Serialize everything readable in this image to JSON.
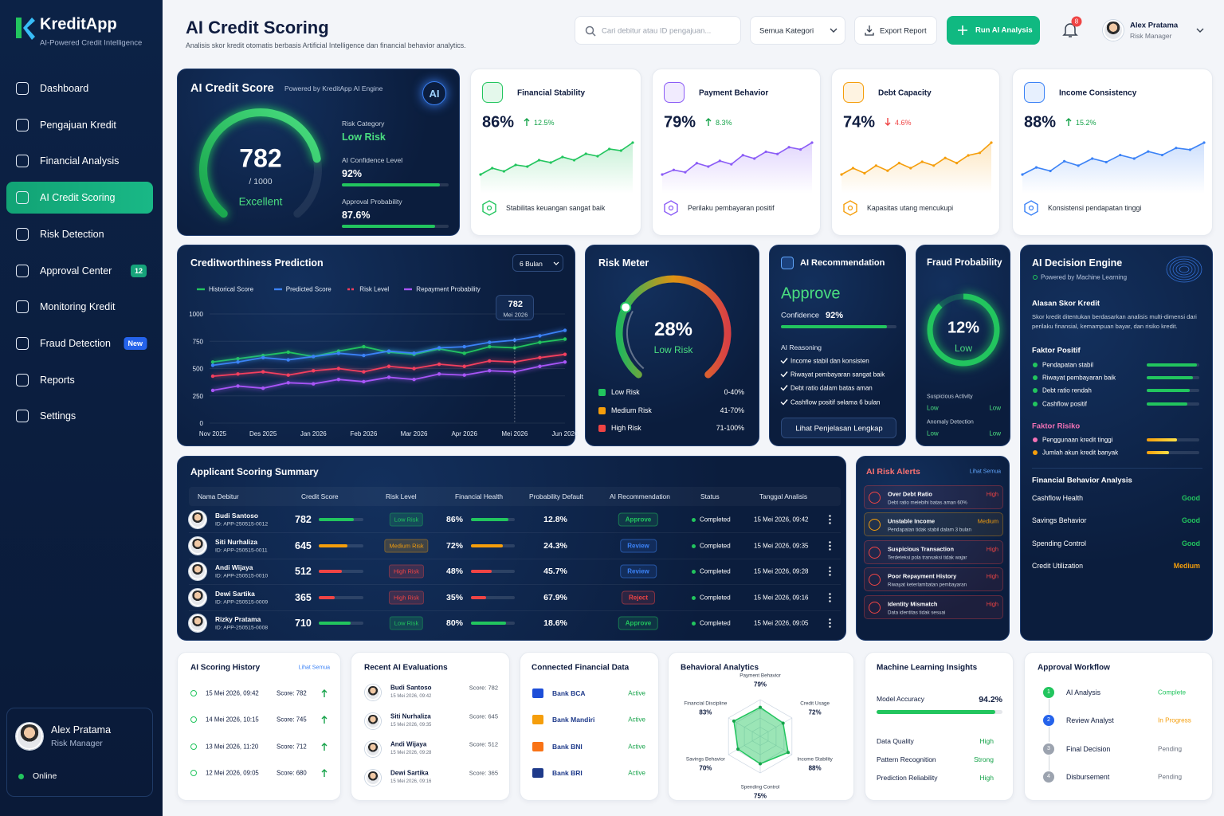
{
  "sidebar": {
    "brand": "KreditApp",
    "tagline": "AI-Powered Credit Intelligence",
    "nav": [
      {
        "label": "Dashboard"
      },
      {
        "label": "Pengajuan Kredit"
      },
      {
        "label": "Financial Analysis"
      },
      {
        "label": "AI Credit Scoring",
        "active": true
      },
      {
        "label": "Risk Detection"
      },
      {
        "label": "Approval Center",
        "badge": 12
      },
      {
        "label": "Monitoring Kredit"
      },
      {
        "label": "Fraud Detection",
        "badge": "New"
      },
      {
        "label": "Reports"
      },
      {
        "label": "Settings"
      }
    ],
    "user": {
      "name": "Alex Pratama",
      "role": "Risk Manager",
      "status": "Online"
    }
  },
  "header": {
    "title": "AI Credit Scoring",
    "subtitle": "Analisis skor kredit otomatis berbasis Artificial Intelligence dan financial behavior analytics.",
    "search_placeholder": "Cari debitur atau ID pengajuan...",
    "filter": "Semua Kategori",
    "export": "Export Report",
    "run": "Run AI Analysis",
    "notifications": 8,
    "user": {
      "name": "Alex Pratama",
      "role": "Risk Manager"
    }
  },
  "score_card": {
    "title": "AI Credit Score",
    "powered": "Powered by KreditApp AI Engine",
    "badge": "AI",
    "score": 782,
    "max": {
      "value": 1000,
      "label": "/ 1000"
    },
    "grade": "Excellent",
    "risk_category": {
      "label": "Risk Category",
      "value": "Low Risk"
    },
    "bars": [
      {
        "label": "AI Confidence Level",
        "value": 92,
        "value_label": "92%"
      },
      {
        "label": "Approval Probability",
        "value": 87.6,
        "value_label": "87.6%"
      }
    ]
  },
  "metrics": [
    {
      "title": "Financial Stability",
      "value": "86%",
      "change": "12.5%",
      "trend": "up",
      "color": "#22c55e",
      "note": "Stabilitas keuangan sangat baik",
      "spark": [
        40,
        48,
        44,
        52,
        50,
        58,
        55,
        62,
        58,
        66,
        63,
        72,
        70,
        80
      ]
    },
    {
      "title": "Payment Behavior",
      "value": "79%",
      "change": "8.3%",
      "trend": "up",
      "color": "#8b5cf6",
      "note": "Perilaku pembayaran positif",
      "spark": [
        38,
        42,
        40,
        48,
        45,
        50,
        47,
        55,
        52,
        58,
        56,
        62,
        60,
        66
      ]
    },
    {
      "title": "Debt Capacity",
      "value": "74%",
      "change": "4.6%",
      "trend": "down",
      "color": "#f59e0b",
      "note": "Kapasitas utang mencukupi",
      "spark": [
        45,
        50,
        46,
        52,
        48,
        54,
        50,
        55,
        52,
        58,
        54,
        60,
        62,
        70
      ]
    },
    {
      "title": "Income Consistency",
      "value": "88%",
      "change": "15.2%",
      "trend": "up",
      "color": "#3b82f6",
      "note": "Konsistensi pendapatan tinggi",
      "spark": [
        40,
        48,
        44,
        55,
        50,
        58,
        54,
        62,
        58,
        66,
        62,
        70,
        68,
        76
      ]
    }
  ],
  "chart_data": [
    {
      "type": "line",
      "title": "Creditworthiness Prediction",
      "range": "6 Bulan",
      "categories": [
        "Nov 2025",
        null,
        "Des 2025",
        null,
        "Jan 2026",
        null,
        "Feb 2026",
        null,
        "Mar 2026",
        null,
        "Apr 2026",
        null,
        "Mei 2026",
        null,
        "Jun 2026"
      ],
      "series": [
        {
          "name": "Historical Score",
          "color": "#22c55e",
          "values": [
            560,
            590,
            620,
            650,
            610,
            660,
            700,
            650,
            630,
            680,
            640,
            700,
            690,
            740,
            770
          ]
        },
        {
          "name": "Predicted Score",
          "color": "#3b82f6",
          "values": [
            530,
            560,
            600,
            580,
            610,
            640,
            620,
            660,
            640,
            690,
            700,
            740,
            760,
            800,
            850
          ]
        },
        {
          "name": "Risk Level",
          "color": "#f43f5e",
          "dash": true,
          "values": [
            430,
            450,
            470,
            440,
            480,
            500,
            470,
            520,
            500,
            540,
            520,
            570,
            560,
            600,
            630
          ]
        },
        {
          "name": "Repayment Probability",
          "color": "#a855f7",
          "values": [
            300,
            340,
            320,
            370,
            360,
            400,
            380,
            420,
            400,
            450,
            440,
            480,
            470,
            520,
            560
          ]
        }
      ],
      "ylim": [
        0,
        1000
      ],
      "yticks": [
        0,
        250,
        500,
        750,
        1000
      ],
      "grid": true,
      "tooltip": {
        "value": 782,
        "date": "Mei 2026"
      }
    },
    {
      "type": "radar",
      "title": "Behavioral Analytics",
      "color": "#22c55e",
      "categories": [
        "Payment Behavior",
        "Credit Usage",
        "Income Stability",
        "Spending Control",
        "Savings Behavior",
        "Financial Discipline"
      ],
      "values": [
        79,
        72,
        88,
        75,
        70,
        83
      ],
      "value_labels": [
        "79%",
        "72%",
        "88%",
        "75%",
        "70%",
        "83%"
      ]
    }
  ],
  "risk_meter": {
    "title": "Risk Meter",
    "value": 28,
    "value_label": "28%",
    "status": "Low Risk",
    "levels": [
      {
        "label": "Low Risk",
        "range": "0-40%",
        "color": "#22c55e"
      },
      {
        "label": "Medium Risk",
        "range": "41-70%",
        "color": "#f59e0b"
      },
      {
        "label": "High Risk",
        "range": "71-100%",
        "color": "#ef4444"
      }
    ]
  },
  "recommendation": {
    "title": "AI Recommendation",
    "decision": "Approve",
    "confidence_label": "Confidence",
    "confidence": 92,
    "confidence_value_label": "92%",
    "reasoning_title": "AI Reasoning",
    "reasons": [
      "Income stabil dan konsisten",
      "Riwayat pembayaran sangat baik",
      "Debt ratio dalam batas aman",
      "Cashflow positif selama 6 bulan"
    ],
    "button": "Lihat Penjelasan Lengkap"
  },
  "fraud": {
    "title": "Fraud Probability",
    "value": 12,
    "value_label": "12%",
    "status": "Low",
    "checks": [
      {
        "label": "Suspicious Activity",
        "values": [
          "Low",
          "Low"
        ]
      },
      {
        "label": "Anomaly Detection",
        "values": [
          "Low",
          "Low"
        ]
      }
    ]
  },
  "decision_engine": {
    "title": "AI Decision Engine",
    "powered": "Powered by Machine Learning",
    "reason_title": "Alasan Skor Kredit",
    "reason": "Skor kredit ditentukan berdasarkan analisis multi-dimensi dari perilaku finansial, kemampuan bayar, dan risiko kredit.",
    "positive_title": "Faktor Positif",
    "positive": [
      {
        "label": "Pendapatan stabil",
        "value": 95
      },
      {
        "label": "Riwayat pembayaran baik",
        "value": 88
      },
      {
        "label": "Debt ratio rendah",
        "value": 82
      },
      {
        "label": "Cashflow positif",
        "value": 78
      }
    ],
    "risk_title": "Faktor Risiko",
    "risks": [
      {
        "label": "Penggunaan kredit tinggi",
        "value": 58
      },
      {
        "label": "Jumlah akun kredit banyak",
        "value": 42
      }
    ],
    "behavior_title": "Financial Behavior Analysis",
    "behavior": [
      {
        "label": "Cashflow Health",
        "status": "Good",
        "color": "#22c55e"
      },
      {
        "label": "Savings Behavior",
        "status": "Good",
        "color": "#22c55e"
      },
      {
        "label": "Spending Control",
        "status": "Good",
        "color": "#22c55e"
      },
      {
        "label": "Credit Utilization",
        "status": "Medium",
        "color": "#f59e0b"
      }
    ]
  },
  "applicants": {
    "title": "Applicant Scoring Summary",
    "columns": [
      "Nama Debitur",
      "Credit Score",
      "Risk Level",
      "Financial Health",
      "Probability Default",
      "AI Recommendation",
      "Status",
      "Tanggal Analisis"
    ],
    "rows": [
      {
        "name": "Budi Santoso",
        "id": "ID: APP-250515-0012",
        "score": 782,
        "risk": "Low Risk",
        "risk_color": "#22c55e",
        "health": 86,
        "health_label": "86%",
        "pd": "12.8%",
        "rec": "Approve",
        "rec_color": "#22c55e",
        "status": "Completed",
        "date": "15 Mei 2026, 09:42"
      },
      {
        "name": "Siti Nurhaliza",
        "id": "ID: APP-250515-0011",
        "score": 645,
        "risk": "Medium Risk",
        "risk_color": "#f59e0b",
        "health": 72,
        "health_label": "72%",
        "pd": "24.3%",
        "rec": "Review",
        "rec_color": "#3b82f6",
        "status": "Completed",
        "date": "15 Mei 2026, 09:35"
      },
      {
        "name": "Andi Wijaya",
        "id": "ID: APP-250515-0010",
        "score": 512,
        "risk": "High Risk",
        "risk_color": "#ef4444",
        "health": 48,
        "health_label": "48%",
        "pd": "45.7%",
        "rec": "Review",
        "rec_color": "#3b82f6",
        "status": "Completed",
        "date": "15 Mei 2026, 09:28"
      },
      {
        "name": "Dewi Sartika",
        "id": "ID: APP-250515-0009",
        "score": 365,
        "risk": "High Risk",
        "risk_color": "#ef4444",
        "health": 35,
        "health_label": "35%",
        "pd": "67.9%",
        "rec": "Reject",
        "rec_color": "#ef4444",
        "status": "Completed",
        "date": "15 Mei 2026, 09:16"
      },
      {
        "name": "Rizky Pratama",
        "id": "ID: APP-250515-0008",
        "score": 710,
        "risk": "Low Risk",
        "risk_color": "#22c55e",
        "health": 80,
        "health_label": "80%",
        "pd": "18.6%",
        "rec": "Approve",
        "rec_color": "#22c55e",
        "status": "Completed",
        "date": "15 Mei 2026, 09:05"
      }
    ]
  },
  "alerts": {
    "title": "AI Risk Alerts",
    "link": "Lihat Semua",
    "items": [
      {
        "title": "Over Debt Ratio",
        "desc": "Debt ratio melebihi batas aman 60%",
        "level": "High",
        "color": "#ef4444"
      },
      {
        "title": "Unstable Income",
        "desc": "Pendapatan tidak stabil dalam 3 bulan",
        "level": "Medium",
        "color": "#f59e0b"
      },
      {
        "title": "Suspicious Transaction",
        "desc": "Terdeteksi pola transaksi tidak wajar",
        "level": "High",
        "color": "#ef4444"
      },
      {
        "title": "Poor Repayment History",
        "desc": "Riwayat keterlambatan pembayaran",
        "level": "High",
        "color": "#ef4444"
      },
      {
        "title": "Identity Mismatch",
        "desc": "Data identitas tidak sesuai",
        "level": "High",
        "color": "#ef4444"
      }
    ]
  },
  "history": {
    "title": "AI Scoring History",
    "link": "Lihat Semua",
    "items": [
      {
        "date": "15 Mei 2026, 09:42",
        "score": "Score: 782"
      },
      {
        "date": "14 Mei 2026, 10:15",
        "score": "Score: 745"
      },
      {
        "date": "13 Mei 2026, 11:20",
        "score": "Score: 712"
      },
      {
        "date": "12 Mei 2026, 09:05",
        "score": "Score: 680"
      }
    ]
  },
  "evaluations": {
    "title": "Recent AI Evaluations",
    "items": [
      {
        "name": "Budi Santoso",
        "date": "15 Mei 2026, 09:42",
        "score": "Score: 782"
      },
      {
        "name": "Siti Nurhaliza",
        "date": "15 Mei 2026, 09:35",
        "score": "Score: 645"
      },
      {
        "name": "Andi Wijaya",
        "date": "15 Mei 2026, 09:28",
        "score": "Score: 512"
      },
      {
        "name": "Dewi Sartika",
        "date": "15 Mei 2026, 09:16",
        "score": "Score: 365"
      }
    ]
  },
  "connected": {
    "title": "Connected Financial Data",
    "items": [
      {
        "name": "Bank BCA",
        "status": "Active",
        "color": "#1d4ed8"
      },
      {
        "name": "Bank Mandiri",
        "status": "Active",
        "color": "#f59e0b"
      },
      {
        "name": "Bank BNI",
        "status": "Active",
        "color": "#f97316"
      },
      {
        "name": "Bank BRI",
        "status": "Active",
        "color": "#1e3a8a"
      }
    ]
  },
  "ml": {
    "title": "Machine Learning Insights",
    "accuracy_label": "Model Accuracy",
    "accuracy": 94.2,
    "accuracy_value_label": "94.2%",
    "items": [
      {
        "label": "Data Quality",
        "value": "High"
      },
      {
        "label": "Pattern Recognition",
        "value": "Strong"
      },
      {
        "label": "Prediction Reliability",
        "value": "High"
      }
    ]
  },
  "workflow": {
    "title": "Approval Workflow",
    "steps": [
      {
        "number": 1,
        "label": "AI Analysis",
        "status": "Complete",
        "color": "#22c55e"
      },
      {
        "number": 2,
        "label": "Review Analyst",
        "status": "In Progress",
        "color": "#f59e0b",
        "dot": "#2563eb"
      },
      {
        "number": 3,
        "label": "Final Decision",
        "status": "Pending",
        "color": "#6b7280"
      },
      {
        "number": 4,
        "label": "Disbursement",
        "status": "Pending",
        "color": "#6b7280"
      }
    ]
  }
}
